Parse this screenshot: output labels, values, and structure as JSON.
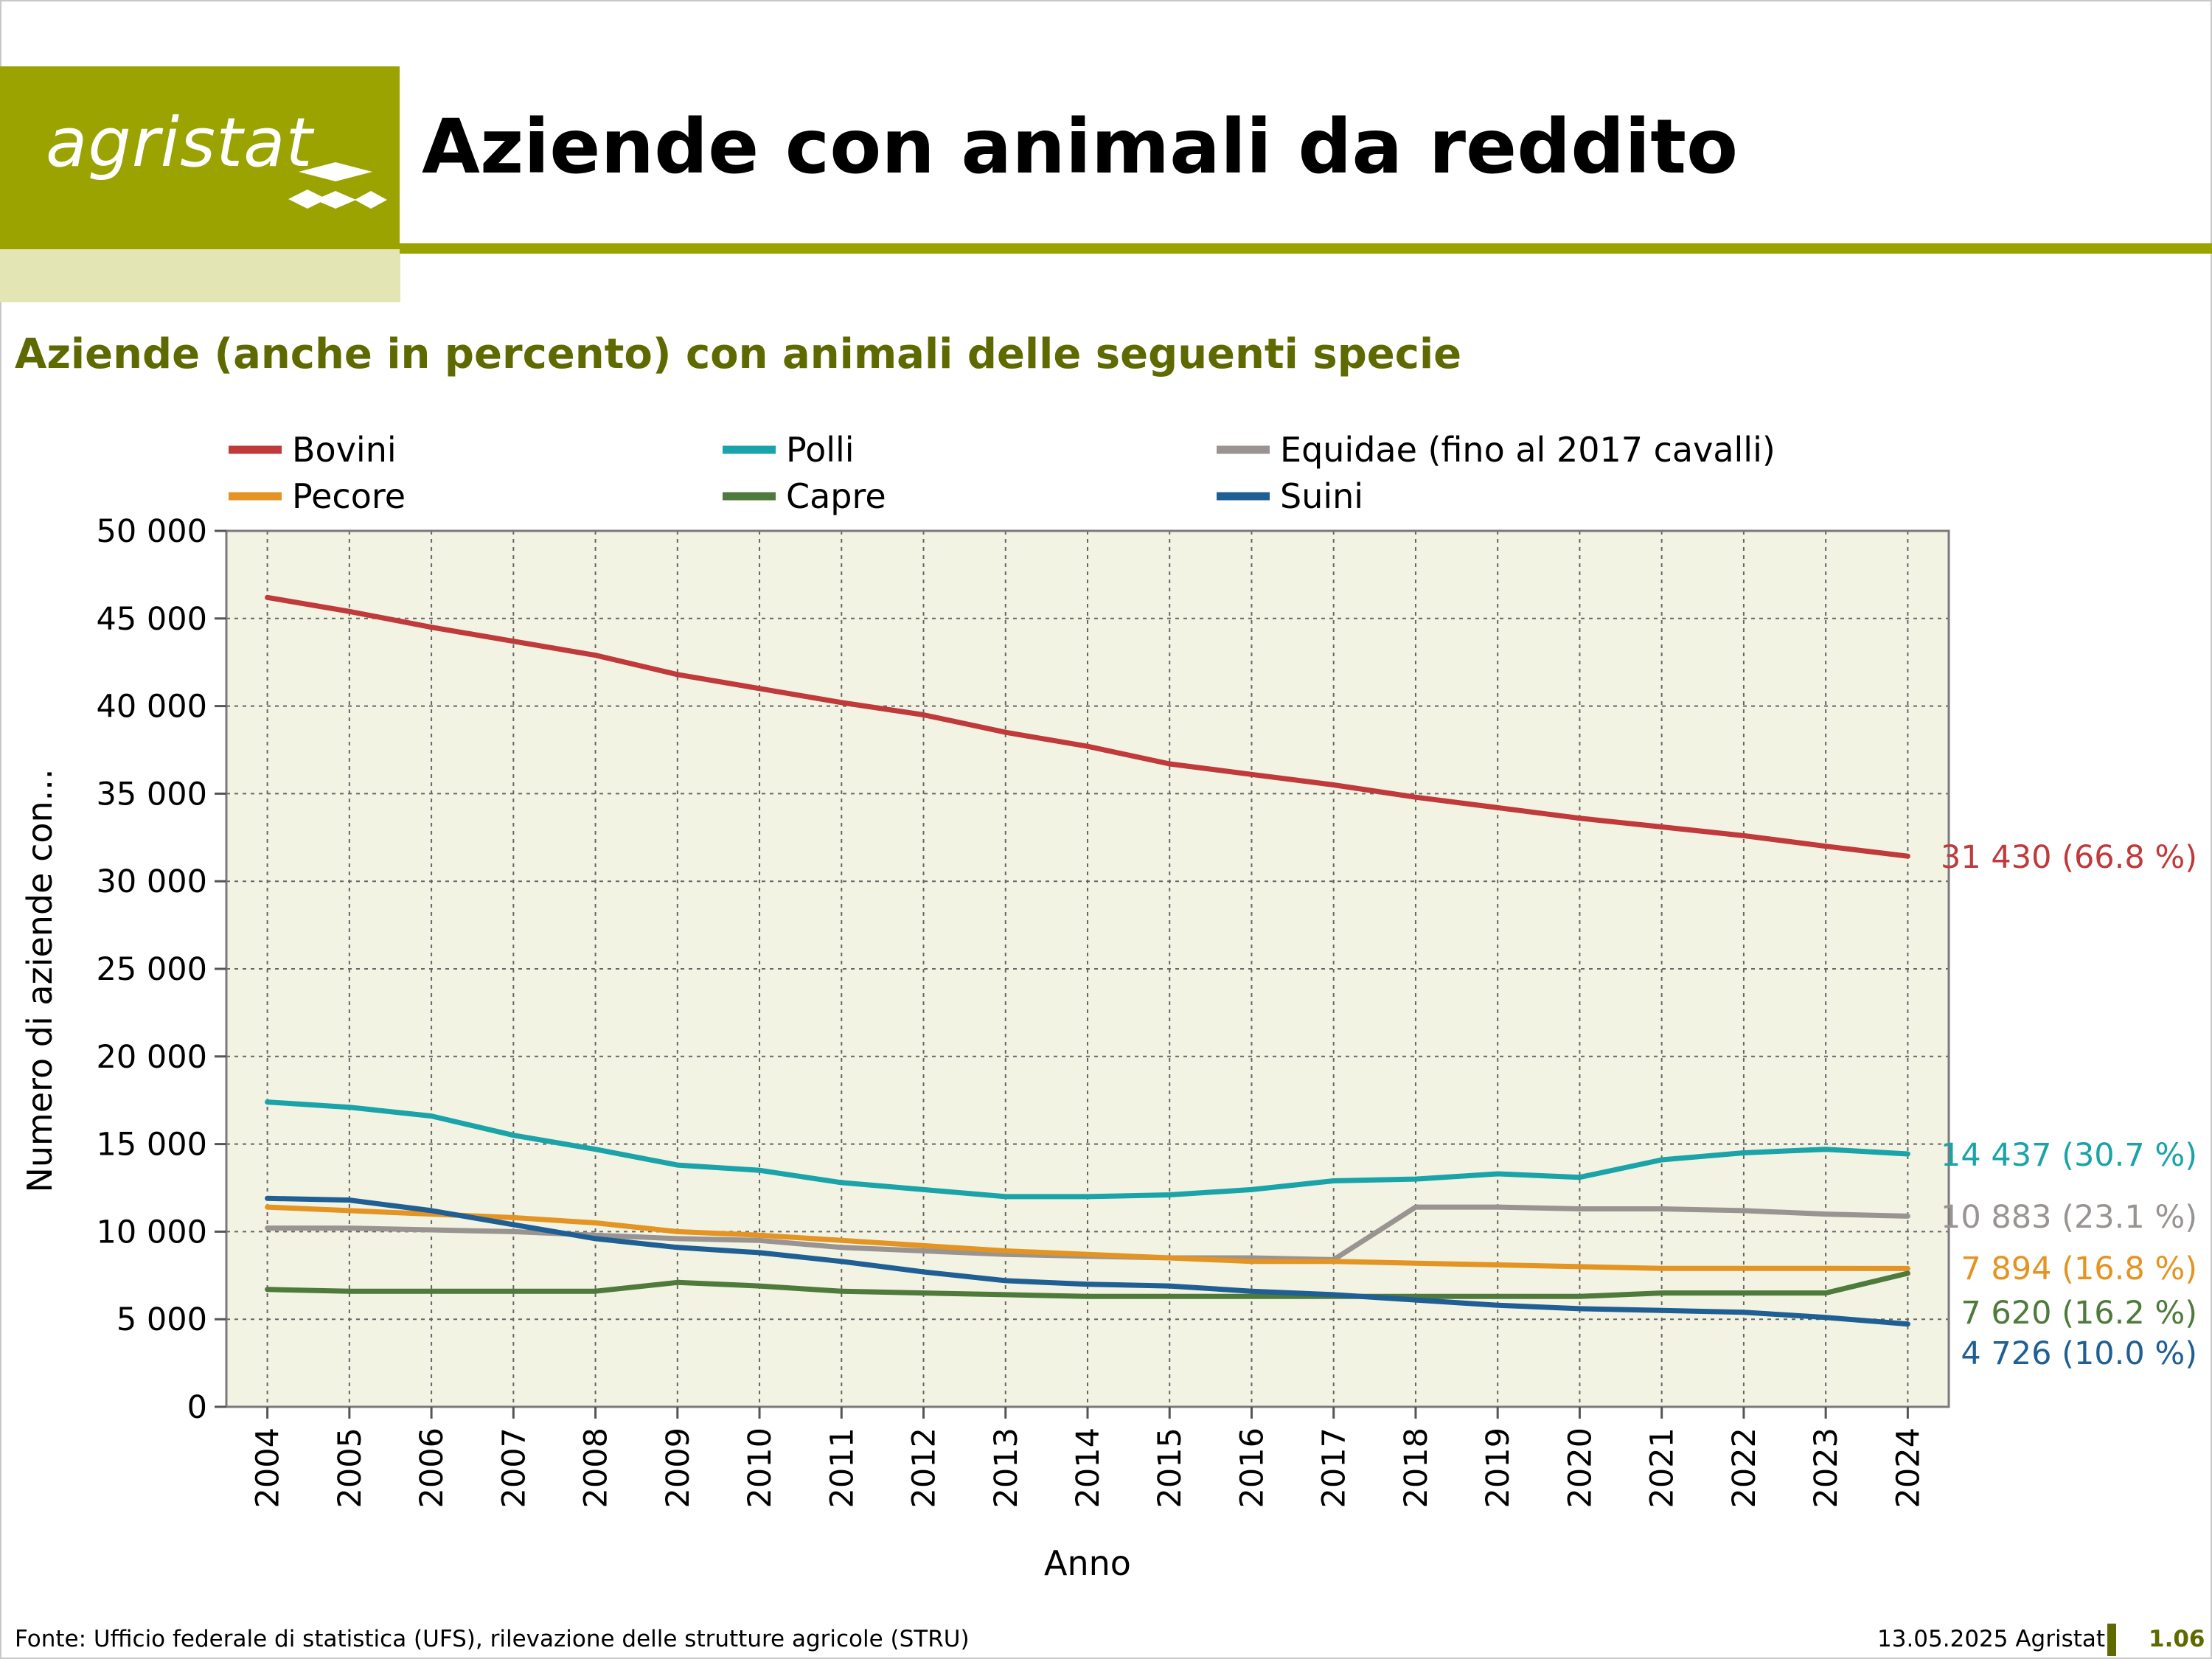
{
  "header": {
    "logo_text": "agristat",
    "title": "Aziende con animali da reddito",
    "subtitle": "Aziende (anche in percento) con animali delle seguenti specie"
  },
  "footer": {
    "source": "Fonte: Ufficio federale di statistica (UFS), rilevazione delle strutture agricole (STRU)",
    "date": "13.05.2025 Agristat",
    "page": "1.06"
  },
  "colors": {
    "brand": "#9aa300",
    "brand_dark": "#5e6a00",
    "plot_background": "#f2f3e3"
  },
  "chart_data": {
    "type": "line",
    "title": "",
    "xlabel": "Anno",
    "ylabel": "Numero di aziende con...",
    "x": [
      2004,
      2005,
      2006,
      2007,
      2008,
      2009,
      2010,
      2011,
      2012,
      2013,
      2014,
      2015,
      2016,
      2017,
      2018,
      2019,
      2020,
      2021,
      2022,
      2023,
      2024
    ],
    "ylim": [
      0,
      50000
    ],
    "yticks": [
      0,
      5000,
      10000,
      15000,
      20000,
      25000,
      30000,
      35000,
      40000,
      45000,
      50000
    ],
    "ytick_labels": [
      "0",
      "5 000",
      "10 000",
      "15 000",
      "20 000",
      "25 000",
      "30 000",
      "35 000",
      "40 000",
      "45 000",
      "50 000"
    ],
    "grid": true,
    "legend_position": "top",
    "series": [
      {
        "name": "Bovini",
        "color": "#c0393b",
        "values": [
          46200,
          45400,
          44500,
          43700,
          42900,
          41800,
          41000,
          40200,
          39500,
          38500,
          37700,
          36700,
          36100,
          35500,
          34800,
          34200,
          33600,
          33100,
          32600,
          32000,
          31430
        ],
        "end_label": "31 430 (66.8 %)"
      },
      {
        "name": "Polli",
        "color": "#1aa3a8",
        "values": [
          17400,
          17100,
          16600,
          15500,
          14700,
          13800,
          13500,
          12800,
          12400,
          12000,
          12000,
          12100,
          12400,
          12900,
          13000,
          13300,
          13100,
          14100,
          14500,
          14700,
          14437
        ],
        "end_label": "14 437 (30.7 %)"
      },
      {
        "name": "Equidae (fino al 2017 cavalli)",
        "color": "#999392",
        "values": [
          10200,
          10200,
          10100,
          10000,
          9800,
          9600,
          9500,
          9100,
          8900,
          8700,
          8600,
          8500,
          8500,
          8400,
          11400,
          11400,
          11300,
          11300,
          11200,
          11000,
          10883
        ],
        "end_label": "10 883 (23.1 %)"
      },
      {
        "name": "Pecore",
        "color": "#e39422",
        "values": [
          11400,
          11200,
          11000,
          10800,
          10500,
          10000,
          9800,
          9500,
          9200,
          8900,
          8700,
          8500,
          8300,
          8300,
          8200,
          8100,
          8000,
          7900,
          7900,
          7900,
          7894
        ],
        "end_label": "7 894 (16.8 %)"
      },
      {
        "name": "Capre",
        "color": "#4e7a3b",
        "values": [
          6700,
          6600,
          6600,
          6600,
          6600,
          7100,
          6900,
          6600,
          6500,
          6400,
          6300,
          6300,
          6300,
          6300,
          6300,
          6300,
          6300,
          6500,
          6500,
          6500,
          7620
        ],
        "end_label": "7 620 (16.2 %)"
      },
      {
        "name": "Suini",
        "color": "#1f5f93",
        "values": [
          11900,
          11800,
          11200,
          10400,
          9600,
          9100,
          8800,
          8300,
          7700,
          7200,
          7000,
          6900,
          6600,
          6400,
          6100,
          5800,
          5600,
          5500,
          5400,
          5100,
          4726
        ],
        "end_label": "4 726 (10.0 %)"
      }
    ]
  }
}
